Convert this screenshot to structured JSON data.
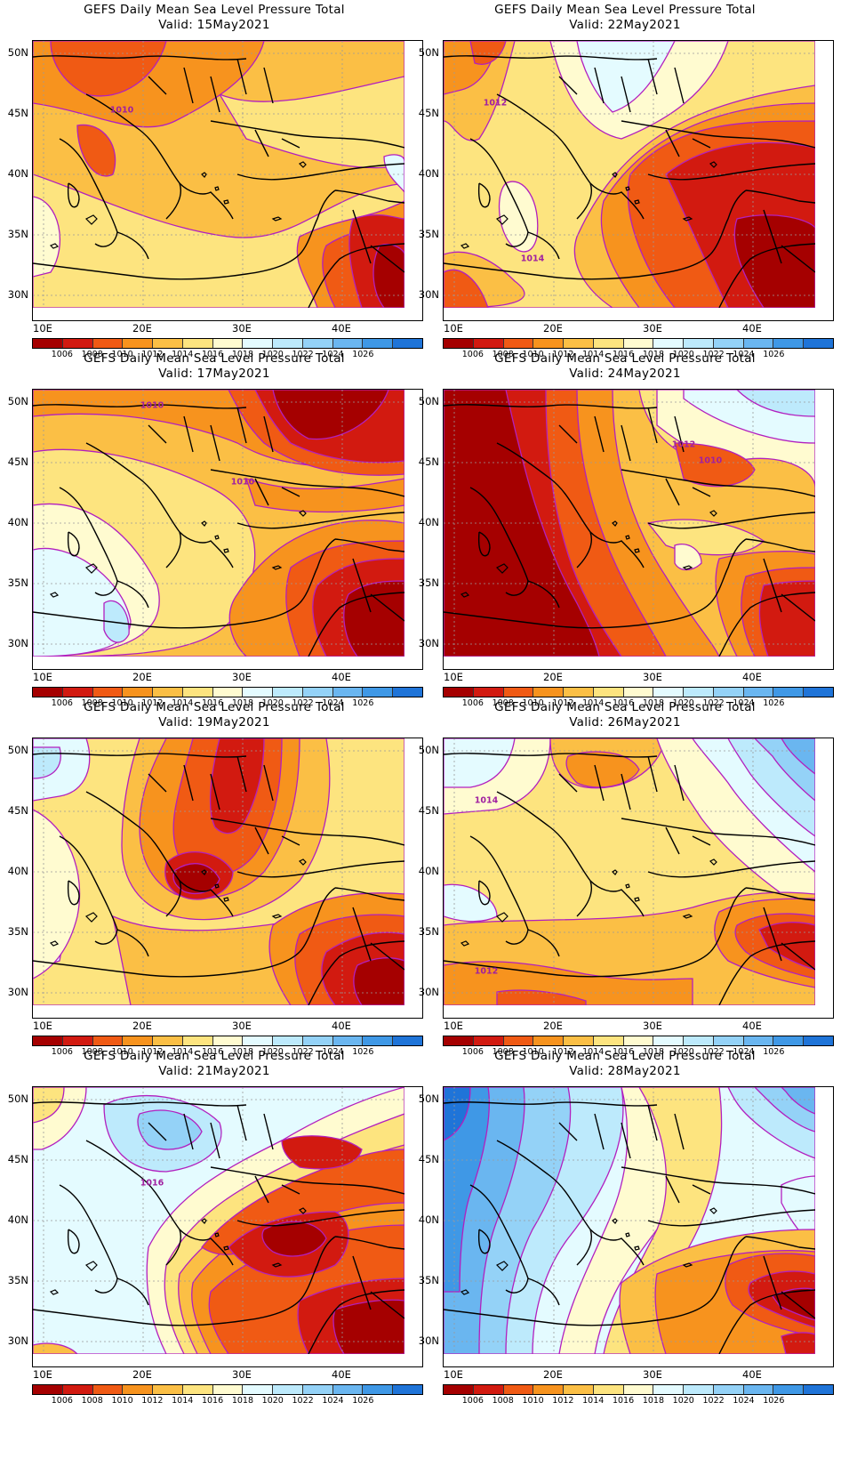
{
  "colorbar": {
    "colors": [
      "#a50000",
      "#d21a10",
      "#f05a14",
      "#f7931e",
      "#fbbf45",
      "#fde47f",
      "#fffbd0",
      "#e4fbff",
      "#bdeafc",
      "#94d2f7",
      "#6ab6f0",
      "#3f98e6",
      "#1f74d8"
    ],
    "labels": [
      "1006",
      "1008",
      "1010",
      "1012",
      "1014",
      "1016",
      "1018",
      "1020",
      "1022",
      "1024",
      "1026"
    ]
  },
  "axes": {
    "lat_labels": [
      "50N",
      "45N",
      "40N",
      "35N",
      "30N"
    ],
    "lon_labels": [
      "10E",
      "20E",
      "30E",
      "40E"
    ]
  },
  "contour_color": "#b21fbf",
  "panels": [
    {
      "title": "GEFS Daily Mean Sea Level Pressure Total",
      "valid": "Valid:  15May2021",
      "date_value": "15May2021",
      "labels": [
        "1010"
      ],
      "scheme": "warm-mixed"
    },
    {
      "title": "GEFS Daily Mean Sea Level Pressure Total",
      "valid": "Valid:  22May2021",
      "date_value": "22May2021",
      "labels": [
        "1012",
        "1014"
      ],
      "scheme": "warm-east"
    },
    {
      "title": "GEFS Daily Mean Sea Level Pressure Total",
      "valid": "Valid:  17May2021",
      "date_value": "17May2021",
      "labels": [
        "1010",
        "1010"
      ],
      "scheme": "warm-ne"
    },
    {
      "title": "GEFS Daily Mean Sea Level Pressure Total",
      "valid": "Valid:  24May2021",
      "date_value": "24May2021",
      "labels": [
        "1012",
        "1010"
      ],
      "scheme": "deep-west"
    },
    {
      "title": "GEFS Daily Mean Sea Level Pressure Total",
      "valid": "Valid:  19May2021",
      "date_value": "19May2021",
      "labels": [],
      "scheme": "warm-center"
    },
    {
      "title": "GEFS Daily Mean Sea Level Pressure Total",
      "valid": "Valid:  26May2021",
      "date_value": "26May2021",
      "labels": [
        "1014",
        "1012"
      ],
      "scheme": "mild-cool-ne"
    },
    {
      "title": "GEFS Daily Mean Sea Level Pressure Total",
      "valid": "Valid:  21May2021",
      "date_value": "21May2021",
      "labels": [
        "1016"
      ],
      "scheme": "cool-west-warm-east"
    },
    {
      "title": "GEFS Daily Mean Sea Level Pressure Total",
      "valid": "Valid:  28May2021",
      "date_value": "28May2021",
      "labels": [],
      "scheme": "cool-west-warm-se"
    }
  ]
}
